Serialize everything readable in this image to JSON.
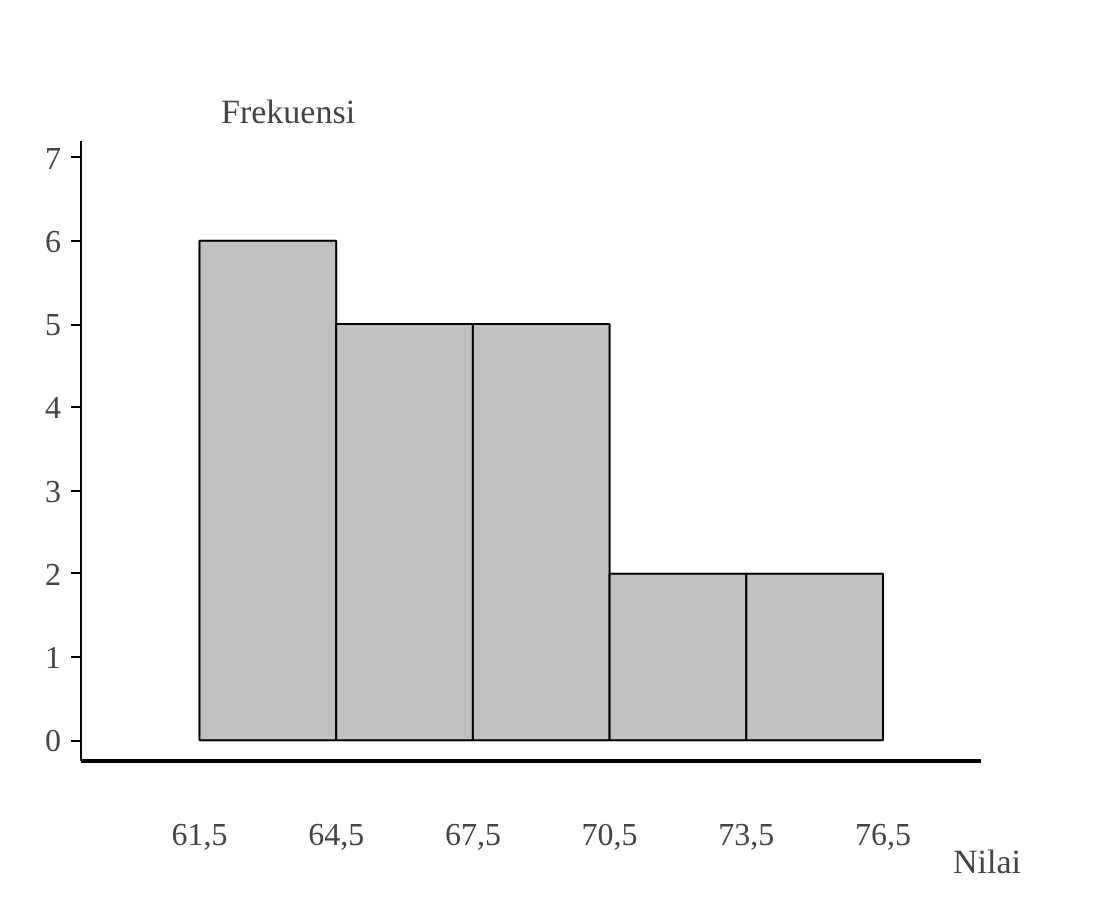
{
  "chart_data": {
    "type": "histogram",
    "ylabel": "Frekuensi",
    "xlabel": "Nilai",
    "bins": [
      61.5,
      64.5,
      67.5,
      70.5,
      73.5,
      76.5
    ],
    "values": [
      6,
      5,
      5,
      2,
      2
    ],
    "color": "#c0c0c0",
    "xlim": [
      58.9,
      78.65
    ],
    "xticks": [
      {
        "value": 61.5,
        "label": "61,5"
      },
      {
        "value": 64.5,
        "label": "64,5"
      },
      {
        "value": 67.5,
        "label": "67,5"
      },
      {
        "value": 70.5,
        "label": "70,5"
      },
      {
        "value": 73.5,
        "label": "73,5"
      },
      {
        "value": 76.5,
        "label": "76,5"
      }
    ],
    "ylim": [
      -0.25,
      7.2
    ],
    "yticks": [
      0,
      1,
      2,
      3,
      4,
      5,
      6,
      7
    ],
    "grid": false
  }
}
